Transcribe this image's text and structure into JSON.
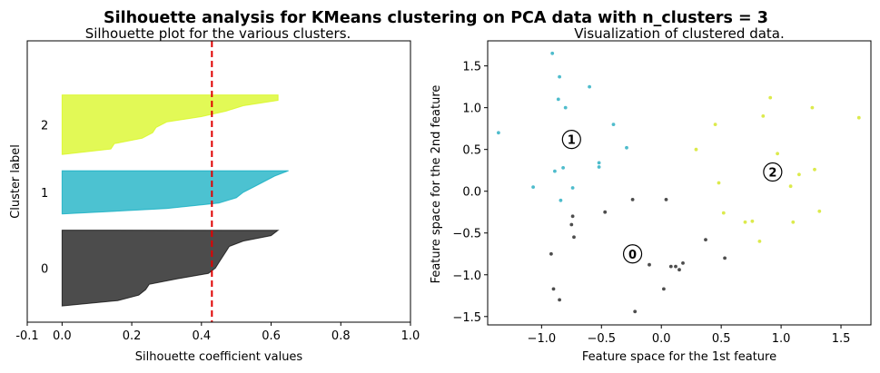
{
  "figure": {
    "suptitle": "Silhouette analysis for KMeans clustering on PCA data with n_clusters = 3"
  },
  "chart_data": [
    {
      "type": "silhouette",
      "title": "Silhouette plot for the various clusters.",
      "xlabel": "Silhouette coefficient values",
      "ylabel": "Cluster label",
      "xlim": [
        -0.1,
        1.0
      ],
      "ylim": [
        0,
        52
      ],
      "xticks": [
        -0.1,
        0.0,
        0.2,
        0.4,
        0.6,
        0.8,
        1.0
      ],
      "xtick_labels": [
        "-0.1",
        "0.0",
        "0.2",
        "0.4",
        "0.6",
        "0.8",
        "1.0"
      ],
      "average_silhouette": 0.43,
      "clusters": [
        {
          "label": "0",
          "color": "#000000",
          "y_lower": 3,
          "y_upper": 17,
          "values": [
            0.62,
            0.6,
            0.52,
            0.48,
            0.47,
            0.46,
            0.45,
            0.44,
            0.42,
            0.33,
            0.25,
            0.24,
            0.22,
            0.16,
            0.0
          ]
        },
        {
          "label": "1",
          "color": "#00a8bd",
          "y_lower": 20,
          "y_upper": 28,
          "values": [
            0.65,
            0.61,
            0.58,
            0.55,
            0.52,
            0.5,
            0.45,
            0.3,
            0.0
          ]
        },
        {
          "label": "2",
          "color": "#d6f70e",
          "y_lower": 31,
          "y_upper": 42,
          "values": [
            0.62,
            0.62,
            0.52,
            0.47,
            0.4,
            0.3,
            0.27,
            0.26,
            0.23,
            0.15,
            0.14,
            0.0
          ]
        }
      ]
    },
    {
      "type": "scatter",
      "title": "Visualization of clustered data.",
      "xlabel": "Feature space for the 1st feature",
      "ylabel": "Feature space for the 2nd feature",
      "xlim": [
        -1.45,
        1.75
      ],
      "ylim": [
        -1.6,
        1.8
      ],
      "xticks": [
        -1.0,
        -0.5,
        0.0,
        0.5,
        1.0,
        1.5
      ],
      "xtick_labels": [
        "−1.0",
        "−0.5",
        "0.0",
        "0.5",
        "1.0",
        "1.5"
      ],
      "yticks": [
        -1.5,
        -1.0,
        -0.5,
        0.0,
        0.5,
        1.0,
        1.5
      ],
      "ytick_labels": [
        "−1.5",
        "−1.0",
        "−0.5",
        "0.0",
        "0.5",
        "1.0",
        "1.5"
      ],
      "series": [
        {
          "cluster": "0",
          "color": "#4d4d4d",
          "points": [
            [
              -0.92,
              -0.75
            ],
            [
              -0.9,
              -1.17
            ],
            [
              -0.85,
              -1.3
            ],
            [
              -0.74,
              -0.3
            ],
            [
              -0.75,
              -0.4
            ],
            [
              -0.73,
              -0.55
            ],
            [
              -0.47,
              -0.25
            ],
            [
              -0.24,
              -0.1
            ],
            [
              -0.22,
              -1.44
            ],
            [
              -0.1,
              -0.88
            ],
            [
              0.02,
              -1.17
            ],
            [
              0.04,
              -0.1
            ],
            [
              0.08,
              -0.9
            ],
            [
              0.12,
              -0.9
            ],
            [
              0.15,
              -0.94
            ],
            [
              0.18,
              -0.86
            ],
            [
              0.37,
              -0.58
            ],
            [
              0.53,
              -0.8
            ]
          ]
        },
        {
          "cluster": "1",
          "color": "#4ebccc",
          "points": [
            [
              -1.36,
              0.7
            ],
            [
              -1.07,
              0.05
            ],
            [
              -0.91,
              1.65
            ],
            [
              -0.89,
              0.24
            ],
            [
              -0.86,
              1.1
            ],
            [
              -0.85,
              1.37
            ],
            [
              -0.84,
              -0.11
            ],
            [
              -0.82,
              0.28
            ],
            [
              -0.8,
              1.0
            ],
            [
              -0.74,
              0.04
            ],
            [
              -0.6,
              1.25
            ],
            [
              -0.52,
              0.29
            ],
            [
              -0.52,
              0.34
            ],
            [
              -0.4,
              0.8
            ],
            [
              -0.29,
              0.52
            ]
          ]
        },
        {
          "cluster": "2",
          "color": "#dcea4c",
          "points": [
            [
              0.29,
              0.5
            ],
            [
              0.45,
              0.8
            ],
            [
              0.48,
              0.1
            ],
            [
              0.52,
              -0.26
            ],
            [
              0.7,
              -0.37
            ],
            [
              0.76,
              -0.36
            ],
            [
              0.82,
              -0.6
            ],
            [
              0.85,
              0.9
            ],
            [
              0.91,
              1.12
            ],
            [
              0.97,
              0.45
            ],
            [
              1.08,
              0.06
            ],
            [
              1.1,
              -0.37
            ],
            [
              1.15,
              0.2
            ],
            [
              1.26,
              1.0
            ],
            [
              1.28,
              0.26
            ],
            [
              1.32,
              -0.24
            ],
            [
              1.65,
              0.88
            ]
          ]
        }
      ],
      "centers": [
        {
          "label": "0",
          "x": -0.24,
          "y": -0.75
        },
        {
          "label": "1",
          "x": -0.75,
          "y": 0.62
        },
        {
          "label": "2",
          "x": 0.93,
          "y": 0.23
        }
      ]
    }
  ]
}
